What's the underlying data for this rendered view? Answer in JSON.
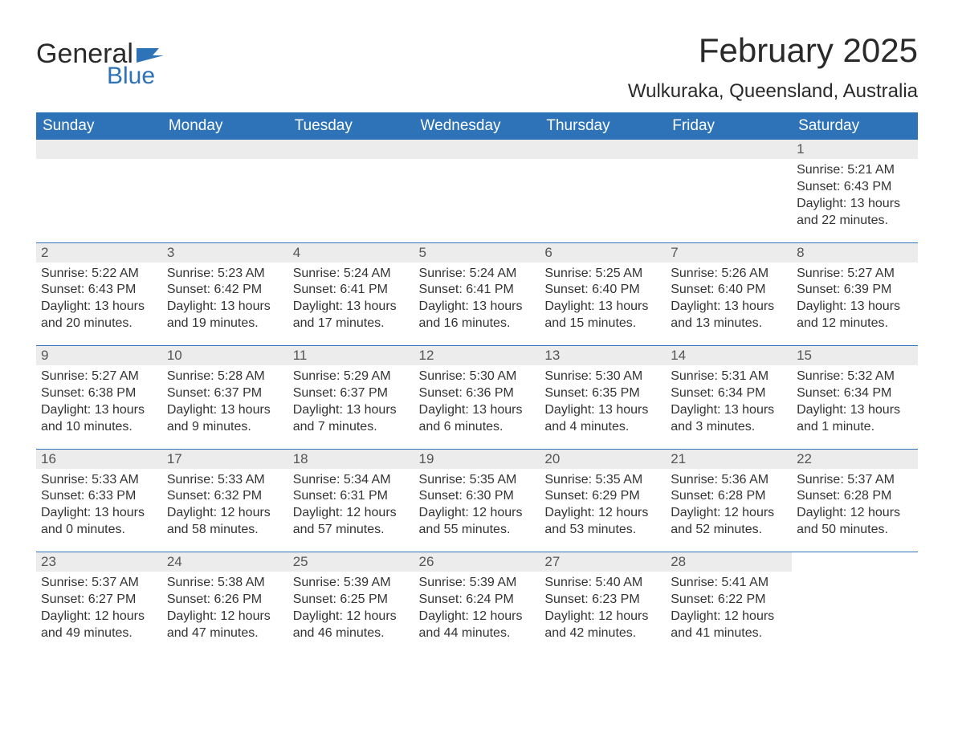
{
  "brand": {
    "word1": "General",
    "word2": "Blue"
  },
  "title": "February 2025",
  "location": "Wulkuraka, Queensland, Australia",
  "colors": {
    "header_bg": "#2e72b8",
    "header_text": "#ffffff",
    "daynum_bg": "#ececec",
    "text": "#333333",
    "page_bg": "#ffffff"
  },
  "weekdays": [
    "Sunday",
    "Monday",
    "Tuesday",
    "Wednesday",
    "Thursday",
    "Friday",
    "Saturday"
  ],
  "weeks": [
    [
      null,
      null,
      null,
      null,
      null,
      null,
      {
        "n": "1",
        "sunrise": "5:21 AM",
        "sunset": "6:43 PM",
        "dl": "13 hours and 22 minutes."
      }
    ],
    [
      {
        "n": "2",
        "sunrise": "5:22 AM",
        "sunset": "6:43 PM",
        "dl": "13 hours and 20 minutes."
      },
      {
        "n": "3",
        "sunrise": "5:23 AM",
        "sunset": "6:42 PM",
        "dl": "13 hours and 19 minutes."
      },
      {
        "n": "4",
        "sunrise": "5:24 AM",
        "sunset": "6:41 PM",
        "dl": "13 hours and 17 minutes."
      },
      {
        "n": "5",
        "sunrise": "5:24 AM",
        "sunset": "6:41 PM",
        "dl": "13 hours and 16 minutes."
      },
      {
        "n": "6",
        "sunrise": "5:25 AM",
        "sunset": "6:40 PM",
        "dl": "13 hours and 15 minutes."
      },
      {
        "n": "7",
        "sunrise": "5:26 AM",
        "sunset": "6:40 PM",
        "dl": "13 hours and 13 minutes."
      },
      {
        "n": "8",
        "sunrise": "5:27 AM",
        "sunset": "6:39 PM",
        "dl": "13 hours and 12 minutes."
      }
    ],
    [
      {
        "n": "9",
        "sunrise": "5:27 AM",
        "sunset": "6:38 PM",
        "dl": "13 hours and 10 minutes."
      },
      {
        "n": "10",
        "sunrise": "5:28 AM",
        "sunset": "6:37 PM",
        "dl": "13 hours and 9 minutes."
      },
      {
        "n": "11",
        "sunrise": "5:29 AM",
        "sunset": "6:37 PM",
        "dl": "13 hours and 7 minutes."
      },
      {
        "n": "12",
        "sunrise": "5:30 AM",
        "sunset": "6:36 PM",
        "dl": "13 hours and 6 minutes."
      },
      {
        "n": "13",
        "sunrise": "5:30 AM",
        "sunset": "6:35 PM",
        "dl": "13 hours and 4 minutes."
      },
      {
        "n": "14",
        "sunrise": "5:31 AM",
        "sunset": "6:34 PM",
        "dl": "13 hours and 3 minutes."
      },
      {
        "n": "15",
        "sunrise": "5:32 AM",
        "sunset": "6:34 PM",
        "dl": "13 hours and 1 minute."
      }
    ],
    [
      {
        "n": "16",
        "sunrise": "5:33 AM",
        "sunset": "6:33 PM",
        "dl": "13 hours and 0 minutes."
      },
      {
        "n": "17",
        "sunrise": "5:33 AM",
        "sunset": "6:32 PM",
        "dl": "12 hours and 58 minutes."
      },
      {
        "n": "18",
        "sunrise": "5:34 AM",
        "sunset": "6:31 PM",
        "dl": "12 hours and 57 minutes."
      },
      {
        "n": "19",
        "sunrise": "5:35 AM",
        "sunset": "6:30 PM",
        "dl": "12 hours and 55 minutes."
      },
      {
        "n": "20",
        "sunrise": "5:35 AM",
        "sunset": "6:29 PM",
        "dl": "12 hours and 53 minutes."
      },
      {
        "n": "21",
        "sunrise": "5:36 AM",
        "sunset": "6:28 PM",
        "dl": "12 hours and 52 minutes."
      },
      {
        "n": "22",
        "sunrise": "5:37 AM",
        "sunset": "6:28 PM",
        "dl": "12 hours and 50 minutes."
      }
    ],
    [
      {
        "n": "23",
        "sunrise": "5:37 AM",
        "sunset": "6:27 PM",
        "dl": "12 hours and 49 minutes."
      },
      {
        "n": "24",
        "sunrise": "5:38 AM",
        "sunset": "6:26 PM",
        "dl": "12 hours and 47 minutes."
      },
      {
        "n": "25",
        "sunrise": "5:39 AM",
        "sunset": "6:25 PM",
        "dl": "12 hours and 46 minutes."
      },
      {
        "n": "26",
        "sunrise": "5:39 AM",
        "sunset": "6:24 PM",
        "dl": "12 hours and 44 minutes."
      },
      {
        "n": "27",
        "sunrise": "5:40 AM",
        "sunset": "6:23 PM",
        "dl": "12 hours and 42 minutes."
      },
      {
        "n": "28",
        "sunrise": "5:41 AM",
        "sunset": "6:22 PM",
        "dl": "12 hours and 41 minutes."
      },
      null
    ]
  ],
  "labels": {
    "sunrise": "Sunrise: ",
    "sunset": "Sunset: ",
    "daylight": "Daylight: "
  }
}
